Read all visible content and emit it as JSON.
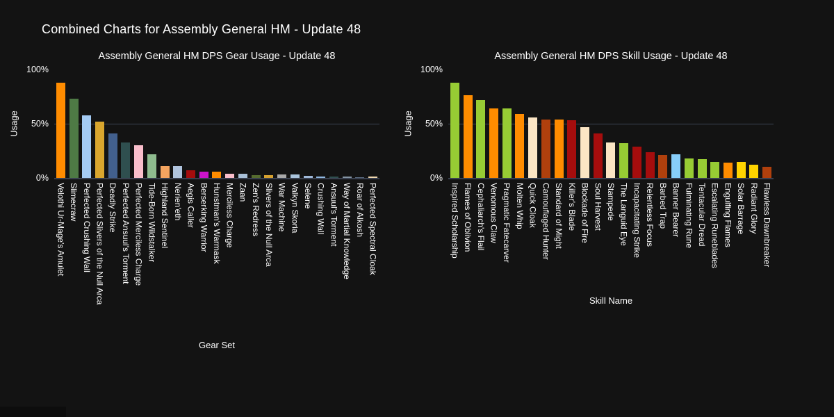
{
  "page": {
    "main_title": "Combined Charts for Assembly General HM - Update 48"
  },
  "chart_data": [
    {
      "type": "bar",
      "title": "Assembly General HM DPS Gear Usage - Update 48",
      "xlabel": "Gear Set",
      "ylabel": "Usage",
      "ylim": [
        0,
        100
      ],
      "yticks": [
        "100%",
        "50%",
        "0%"
      ],
      "grid": "horizontal gridline at 50%, baseline at 0%",
      "legend": "none",
      "categories": [
        "Velothi Ur-Mage's Amulet",
        "Slimecraw",
        "Perfected Crushing Wall",
        "Perfected Slivers of the Null Arca",
        "Deadly Strike",
        "Perfected Ansuul's Torment",
        "Perfected Merciless Charge",
        "Tide-Born Wildstalker",
        "Highland Sentinel",
        "Nerien'eth",
        "Aegis Caller",
        "Berserking Warrior",
        "Hunstman's Warmask",
        "Merciless Charge",
        "Zaan",
        "Zen's Redress",
        "Slivers of the Null Arca",
        "War Machine",
        "Valkyn Skoria",
        "Selene",
        "Crushing Wall",
        "Ansuul's Torment",
        "Way of Martial Knowledge",
        "Roar of Alkosh",
        "Perfected Spectral Cloak"
      ],
      "values": [
        88,
        73,
        58,
        52,
        41,
        33,
        30,
        22,
        11,
        11,
        7,
        6,
        6,
        4,
        4,
        2.5,
        2.5,
        3,
        3,
        2,
        1.2,
        1,
        1.2,
        0.8,
        1.4
      ],
      "colors": [
        "#ff8c00",
        "#4e7a45",
        "#a4cbf4",
        "#d9a62e",
        "#42608e",
        "#2f4f4f",
        "#f9becb",
        "#8fbc8f",
        "#f4a460",
        "#b0c4de",
        "#a50d0d",
        "#cc14cc",
        "#ff8c00",
        "#f9becb",
        "#a9c0d8",
        "#556b2f",
        "#d4a030",
        "#a8a8a8",
        "#aac4dd",
        "#9fb8d8",
        "#8fb7e0",
        "#2f4f4f",
        "#8494a4",
        "#5a6b80",
        "#f0d9b0"
      ]
    },
    {
      "type": "bar",
      "title": "Assembly General HM DPS Skill Usage - Update 48",
      "xlabel": "Skill Name",
      "ylabel": "Usage",
      "ylim": [
        0,
        100
      ],
      "yticks": [
        "100%",
        "50%",
        "0%"
      ],
      "grid": "horizontal gridline at 50%, baseline at 0%",
      "legend": "none",
      "categories": [
        "Inspired Scholarship",
        "Flames of Oblivion",
        "Cephaliarch's Flail",
        "Venomous Claw",
        "Pragmatic Fatecarver",
        "Molten Whip",
        "Quick Cloak",
        "Camouflaged Hunter",
        "Standard of Might",
        "Killer's Blade",
        "Blockade of Fire",
        "Soul Harvest",
        "Stampede",
        "The Languid Eye",
        "Incapacitating Strike",
        "Relentless Focus",
        "Barbed Trap",
        "Banner Bearer",
        "Fulminating Rune",
        "Tentacular Dread",
        "Escalating Runeblades",
        "Engulfing Flames",
        "Solar Barrage",
        "Radiant Glory",
        "Flawless Dawnbreaker"
      ],
      "values": [
        88,
        76,
        72,
        64,
        64,
        59,
        56,
        54,
        54,
        53,
        47,
        41,
        33,
        32,
        29,
        24,
        21,
        22,
        18,
        17,
        15,
        14,
        15,
        12,
        10
      ],
      "colors": [
        "#97cc34",
        "#ff8c00",
        "#97cc34",
        "#ff8c00",
        "#97cc34",
        "#ff8c00",
        "#fbe5c4",
        "#b0400d",
        "#ff8c00",
        "#a50d0d",
        "#fbe5c4",
        "#a50d0d",
        "#fbe5c4",
        "#97cc34",
        "#a50d0d",
        "#a50d0d",
        "#b0400d",
        "#87cefa",
        "#97cc34",
        "#97cc34",
        "#97cc34",
        "#ff8c00",
        "#ffd400",
        "#ffd400",
        "#b0400d"
      ]
    }
  ],
  "style": {
    "background": "#131313",
    "text_color": "#ffffff",
    "gridline_color": "#3c4556",
    "baseline_color": "#39404f"
  }
}
